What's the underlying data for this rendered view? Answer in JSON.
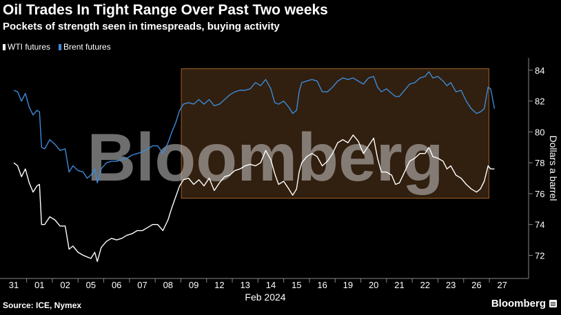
{
  "header": {
    "title": "Oil Trades In Tight Range Over Past Two weeks",
    "subtitle": "Pockets of strength seen in timespreads, buying activity"
  },
  "legend": [
    {
      "label": "WTI futures",
      "color": "#ffffff"
    },
    {
      "label": "Brent futures",
      "color": "#3d8bd9"
    }
  ],
  "footer": {
    "source": "Source: ICE, Nymex",
    "brand": "Bloomberg",
    "brand_icon": "bloomberg-terminal-icon"
  },
  "watermark": "Bloomberg",
  "colors": {
    "background": "#000000",
    "wti": "#ffffff",
    "brent": "#3d8bd9",
    "range_box_fill": "#3a2412",
    "range_box_stroke": "#a0622a"
  },
  "chart_data": {
    "type": "line",
    "xlabel": "Feb 2024",
    "ylabel": "Dollars a barrel",
    "ylim": [
      70.5,
      84.8
    ],
    "yticks": [
      72,
      74,
      76,
      78,
      80,
      82,
      84
    ],
    "categories": [
      "31",
      "01",
      "02",
      "05",
      "06",
      "07",
      "08",
      "09",
      "12",
      "13",
      "14",
      "15",
      "16",
      "19",
      "20",
      "21",
      "22",
      "23",
      "26",
      "27"
    ],
    "grid": false,
    "legend_position": "top-left",
    "highlight_range": {
      "from": "09",
      "to": "26",
      "ymin": 75.7,
      "ymax": 84.1
    },
    "series": [
      {
        "name": "Brent futures",
        "values": [
          [
            0.0,
            82.7
          ],
          [
            0.15,
            82.6
          ],
          [
            0.3,
            82.0
          ],
          [
            0.45,
            82.5
          ],
          [
            0.6,
            81.6
          ],
          [
            0.75,
            81.1
          ],
          [
            0.9,
            81.4
          ],
          [
            1.0,
            81.3
          ],
          [
            1.08,
            79.0
          ],
          [
            1.2,
            78.9
          ],
          [
            1.4,
            79.5
          ],
          [
            1.6,
            79.2
          ],
          [
            1.8,
            78.8
          ],
          [
            2.0,
            78.9
          ],
          [
            2.15,
            77.4
          ],
          [
            2.3,
            77.8
          ],
          [
            2.5,
            77.5
          ],
          [
            2.7,
            77.4
          ],
          [
            2.85,
            77.0
          ],
          [
            3.0,
            77.2
          ],
          [
            3.15,
            77.6
          ],
          [
            3.25,
            76.7
          ],
          [
            3.4,
            77.6
          ],
          [
            3.6,
            78.0
          ],
          [
            3.8,
            78.1
          ],
          [
            4.0,
            78.1
          ],
          [
            4.2,
            78.2
          ],
          [
            4.4,
            78.3
          ],
          [
            4.6,
            78.5
          ],
          [
            4.8,
            78.6
          ],
          [
            5.0,
            78.7
          ],
          [
            5.2,
            78.9
          ],
          [
            5.4,
            79.1
          ],
          [
            5.6,
            79.1
          ],
          [
            5.8,
            78.6
          ],
          [
            6.0,
            79.3
          ],
          [
            6.15,
            80.0
          ],
          [
            6.3,
            80.6
          ],
          [
            6.45,
            81.4
          ],
          [
            6.6,
            81.8
          ],
          [
            6.8,
            81.9
          ],
          [
            7.0,
            81.8
          ],
          [
            7.2,
            82.1
          ],
          [
            7.4,
            81.8
          ],
          [
            7.6,
            82.1
          ],
          [
            7.8,
            81.7
          ],
          [
            8.0,
            81.8
          ],
          [
            8.2,
            82.1
          ],
          [
            8.4,
            82.4
          ],
          [
            8.6,
            82.6
          ],
          [
            8.8,
            82.7
          ],
          [
            9.0,
            82.7
          ],
          [
            9.2,
            82.8
          ],
          [
            9.4,
            83.2
          ],
          [
            9.6,
            83.0
          ],
          [
            9.8,
            83.4
          ],
          [
            10.0,
            82.8
          ],
          [
            10.15,
            81.9
          ],
          [
            10.3,
            81.8
          ],
          [
            10.5,
            82.0
          ],
          [
            10.7,
            81.6
          ],
          [
            10.85,
            81.2
          ],
          [
            11.0,
            81.4
          ],
          [
            11.1,
            82.6
          ],
          [
            11.2,
            83.2
          ],
          [
            11.4,
            83.3
          ],
          [
            11.6,
            83.4
          ],
          [
            11.8,
            83.3
          ],
          [
            12.0,
            82.6
          ],
          [
            12.2,
            82.6
          ],
          [
            12.4,
            82.9
          ],
          [
            12.6,
            83.3
          ],
          [
            12.8,
            83.5
          ],
          [
            13.0,
            83.4
          ],
          [
            13.2,
            83.5
          ],
          [
            13.4,
            83.3
          ],
          [
            13.6,
            83.1
          ],
          [
            13.8,
            83.5
          ],
          [
            14.0,
            83.6
          ],
          [
            14.15,
            82.9
          ],
          [
            14.3,
            82.6
          ],
          [
            14.5,
            82.8
          ],
          [
            14.7,
            82.5
          ],
          [
            14.85,
            82.3
          ],
          [
            15.0,
            82.3
          ],
          [
            15.2,
            82.7
          ],
          [
            15.4,
            83.1
          ],
          [
            15.6,
            83.2
          ],
          [
            15.8,
            83.5
          ],
          [
            16.0,
            83.6
          ],
          [
            16.15,
            83.9
          ],
          [
            16.3,
            83.5
          ],
          [
            16.5,
            83.6
          ],
          [
            16.7,
            83.3
          ],
          [
            16.85,
            83.0
          ],
          [
            17.0,
            83.2
          ],
          [
            17.2,
            82.6
          ],
          [
            17.4,
            82.7
          ],
          [
            17.6,
            82.0
          ],
          [
            17.8,
            81.5
          ],
          [
            18.0,
            81.2
          ],
          [
            18.15,
            81.3
          ],
          [
            18.3,
            81.5
          ],
          [
            18.45,
            82.9
          ],
          [
            18.55,
            82.8
          ],
          [
            18.7,
            81.5
          ]
        ]
      },
      {
        "name": "WTI futures",
        "values": [
          [
            0.0,
            78.0
          ],
          [
            0.15,
            77.8
          ],
          [
            0.3,
            77.1
          ],
          [
            0.45,
            77.6
          ],
          [
            0.6,
            76.7
          ],
          [
            0.75,
            76.1
          ],
          [
            0.9,
            76.5
          ],
          [
            1.0,
            76.6
          ],
          [
            1.08,
            74.0
          ],
          [
            1.2,
            74.0
          ],
          [
            1.4,
            74.5
          ],
          [
            1.6,
            74.3
          ],
          [
            1.8,
            73.9
          ],
          [
            2.0,
            73.9
          ],
          [
            2.15,
            72.4
          ],
          [
            2.3,
            72.6
          ],
          [
            2.5,
            72.2
          ],
          [
            2.7,
            72.0
          ],
          [
            2.85,
            71.9
          ],
          [
            3.0,
            71.8
          ],
          [
            3.15,
            72.2
          ],
          [
            3.25,
            71.6
          ],
          [
            3.4,
            72.5
          ],
          [
            3.6,
            72.9
          ],
          [
            3.8,
            73.1
          ],
          [
            4.0,
            73.0
          ],
          [
            4.2,
            73.1
          ],
          [
            4.4,
            73.3
          ],
          [
            4.6,
            73.4
          ],
          [
            4.8,
            73.6
          ],
          [
            5.0,
            73.6
          ],
          [
            5.2,
            73.8
          ],
          [
            5.4,
            74.0
          ],
          [
            5.6,
            74.0
          ],
          [
            5.8,
            73.6
          ],
          [
            6.0,
            74.3
          ],
          [
            6.15,
            75.1
          ],
          [
            6.3,
            75.8
          ],
          [
            6.45,
            76.5
          ],
          [
            6.6,
            76.9
          ],
          [
            6.8,
            77.0
          ],
          [
            7.0,
            76.6
          ],
          [
            7.2,
            76.9
          ],
          [
            7.4,
            76.5
          ],
          [
            7.6,
            77.0
          ],
          [
            7.8,
            76.2
          ],
          [
            8.0,
            76.7
          ],
          [
            8.2,
            77.1
          ],
          [
            8.4,
            77.2
          ],
          [
            8.6,
            77.5
          ],
          [
            8.8,
            77.6
          ],
          [
            9.0,
            77.8
          ],
          [
            9.2,
            77.9
          ],
          [
            9.4,
            77.8
          ],
          [
            9.6,
            78.0
          ],
          [
            9.8,
            78.8
          ],
          [
            10.0,
            78.2
          ],
          [
            10.15,
            77.3
          ],
          [
            10.3,
            76.6
          ],
          [
            10.5,
            76.8
          ],
          [
            10.7,
            76.3
          ],
          [
            10.85,
            75.9
          ],
          [
            11.0,
            76.3
          ],
          [
            11.1,
            77.4
          ],
          [
            11.2,
            78.0
          ],
          [
            11.4,
            78.4
          ],
          [
            11.6,
            78.6
          ],
          [
            11.8,
            78.4
          ],
          [
            12.0,
            77.8
          ],
          [
            12.2,
            78.1
          ],
          [
            12.4,
            78.6
          ],
          [
            12.6,
            79.3
          ],
          [
            12.8,
            79.5
          ],
          [
            13.0,
            79.3
          ],
          [
            13.2,
            79.8
          ],
          [
            13.4,
            79.4
          ],
          [
            13.6,
            78.6
          ],
          [
            13.8,
            79.1
          ],
          [
            14.0,
            79.6
          ],
          [
            14.15,
            78.3
          ],
          [
            14.3,
            77.4
          ],
          [
            14.5,
            77.4
          ],
          [
            14.7,
            77.2
          ],
          [
            14.85,
            76.6
          ],
          [
            15.0,
            76.7
          ],
          [
            15.2,
            77.4
          ],
          [
            15.4,
            78.1
          ],
          [
            15.6,
            78.3
          ],
          [
            15.8,
            78.6
          ],
          [
            16.0,
            78.6
          ],
          [
            16.15,
            79.0
          ],
          [
            16.3,
            78.4
          ],
          [
            16.5,
            78.3
          ],
          [
            16.7,
            78.1
          ],
          [
            16.85,
            77.6
          ],
          [
            17.0,
            77.8
          ],
          [
            17.2,
            77.2
          ],
          [
            17.4,
            77.0
          ],
          [
            17.6,
            76.6
          ],
          [
            17.8,
            76.3
          ],
          [
            18.0,
            76.1
          ],
          [
            18.15,
            76.3
          ],
          [
            18.3,
            76.8
          ],
          [
            18.45,
            77.8
          ],
          [
            18.55,
            77.6
          ],
          [
            18.7,
            77.6
          ]
        ]
      }
    ]
  }
}
